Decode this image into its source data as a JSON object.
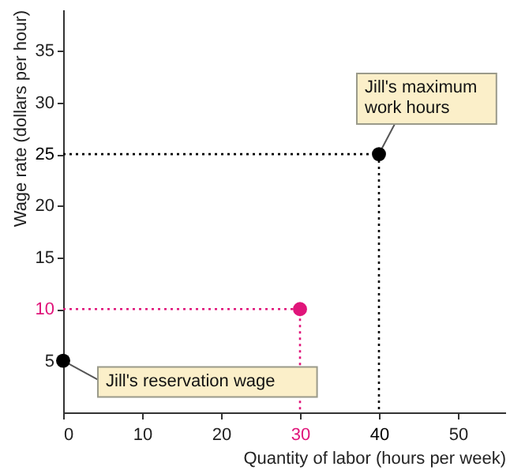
{
  "chart_data": {
    "type": "scatter",
    "xlabel": "Quantity of labor (hours per week)",
    "ylabel": "Wage rate (dollars per hour)",
    "xlim": [
      0,
      56
    ],
    "ylim": [
      0,
      39
    ],
    "xticks": [
      0,
      10,
      20,
      30,
      40,
      50
    ],
    "yticks": [
      5,
      10,
      15,
      20,
      25,
      30,
      35
    ],
    "grid": false,
    "marker": "circle",
    "series": [
      {
        "type": "line",
        "x": [
          0,
          30,
          30
        ],
        "values": [
          10,
          10,
          0
        ],
        "color": "#e0157a",
        "line_style": "dotted",
        "marker": "none"
      },
      {
        "type": "line",
        "x": [
          0,
          40,
          40
        ],
        "values": [
          25,
          25,
          0
        ],
        "color": "#000000",
        "line_style": "dotted",
        "marker": "none"
      },
      {
        "x": [
          0,
          30,
          40
        ],
        "values": [
          5,
          10,
          25
        ],
        "colors": [
          "#000000",
          "#e0157a",
          "#000000"
        ]
      }
    ],
    "annotations": [
      {
        "text": "Jill's reservation wage",
        "x": 0,
        "y": 5
      },
      {
        "text": "Jill's maximum work hours",
        "x": 40,
        "y": 25
      }
    ]
  }
}
